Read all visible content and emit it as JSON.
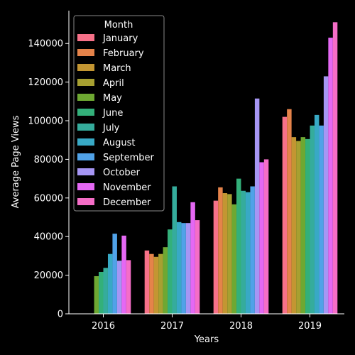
{
  "chart_data": {
    "type": "bar",
    "xlabel": "Years",
    "ylabel": "Average Page Views",
    "ylim": [
      0,
      157000
    ],
    "yticks": [
      0,
      20000,
      40000,
      60000,
      80000,
      100000,
      120000,
      140000
    ],
    "ytick_labels": [
      "0",
      "20000",
      "40000",
      "60000",
      "80000",
      "100000",
      "120000",
      "140000"
    ],
    "categories": [
      "2016",
      "2017",
      "2018",
      "2019"
    ],
    "legend": {
      "title": "Month",
      "placement": "top-left"
    },
    "series": [
      {
        "name": "January",
        "color": "#f77189",
        "values": [
          null,
          32800,
          58600,
          102000
        ]
      },
      {
        "name": "February",
        "color": "#e5834a",
        "values": [
          null,
          31000,
          65500,
          106000
        ]
      },
      {
        "name": "March",
        "color": "#c39632",
        "values": [
          null,
          29500,
          62500,
          91500
        ]
      },
      {
        "name": "April",
        "color": "#a7a031",
        "values": [
          null,
          31000,
          62000,
          89500
        ]
      },
      {
        "name": "May",
        "color": "#6ea832",
        "values": [
          19500,
          34500,
          56700,
          91500
        ]
      },
      {
        "name": "June",
        "color": "#33b07a",
        "values": [
          21700,
          43700,
          70000,
          90500
        ]
      },
      {
        "name": "July",
        "color": "#35ac9c",
        "values": [
          23800,
          66000,
          63700,
          97500
        ]
      },
      {
        "name": "August",
        "color": "#38a9c5",
        "values": [
          31000,
          47500,
          63000,
          103000
        ]
      },
      {
        "name": "September",
        "color": "#50a2e8",
        "values": [
          41500,
          47000,
          66000,
          97500
        ]
      },
      {
        "name": "October",
        "color": "#a696f4",
        "values": [
          27500,
          47000,
          111500,
          123000
        ]
      },
      {
        "name": "November",
        "color": "#e568f4",
        "values": [
          40500,
          57800,
          78500,
          143000
        ]
      },
      {
        "name": "December",
        "color": "#f56dc7",
        "values": [
          27800,
          48500,
          80000,
          151000
        ]
      }
    ]
  }
}
